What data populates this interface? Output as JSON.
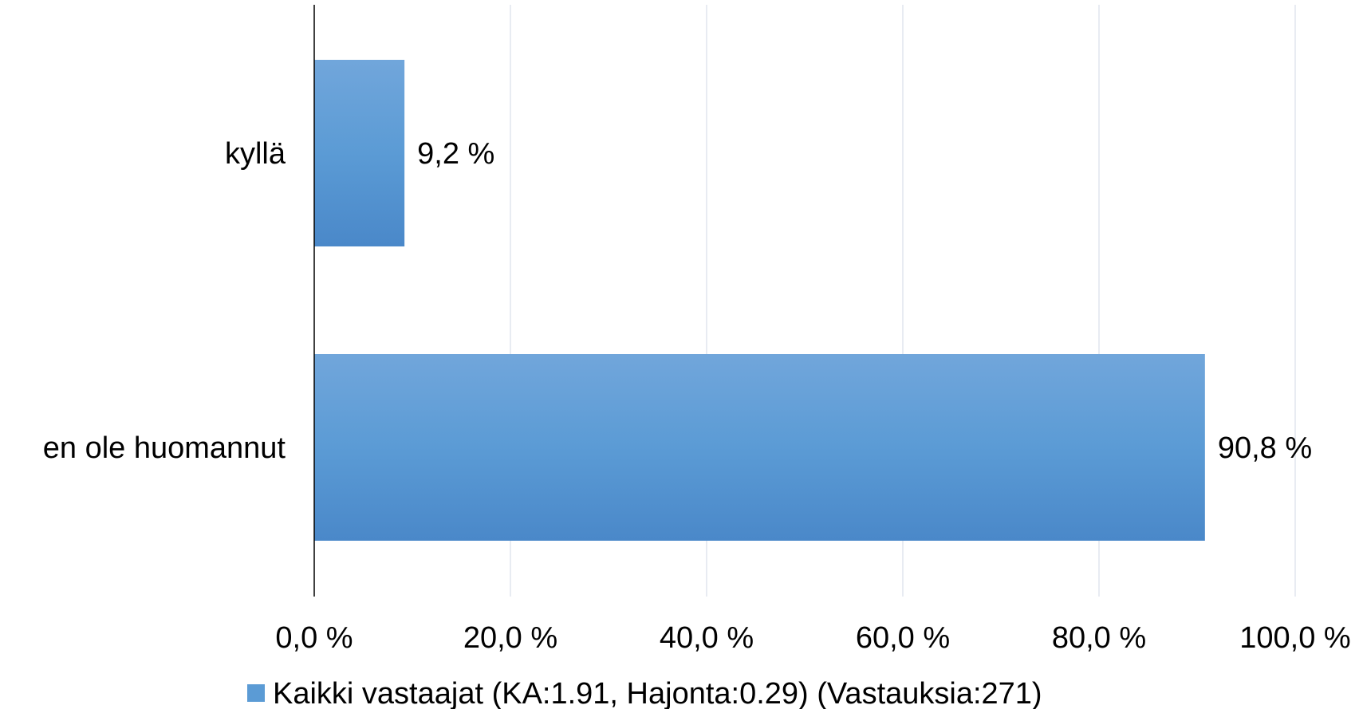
{
  "chart_data": {
    "type": "bar",
    "orientation": "horizontal",
    "categories": [
      "kyllä",
      "en ole huomannut"
    ],
    "series": [
      {
        "name": "Kaikki vastaajat (KA:1.91, Hajonta:0.29) (Vastauksia:271)",
        "values": [
          9.2,
          90.8
        ],
        "data_labels": [
          "9,2 %",
          "90,8 %"
        ],
        "color": "#5b9bd5"
      }
    ],
    "xlim": [
      0,
      100
    ],
    "x_ticks": [
      0,
      20,
      40,
      60,
      80,
      100
    ],
    "x_tick_labels": [
      "0,0 %",
      "20,0 %",
      "40,0 %",
      "60,0 %",
      "80,0 %",
      "100,0 %"
    ],
    "grid": "vertical",
    "legend_position": "bottom",
    "title": "",
    "xlabel": "",
    "ylabel": ""
  }
}
